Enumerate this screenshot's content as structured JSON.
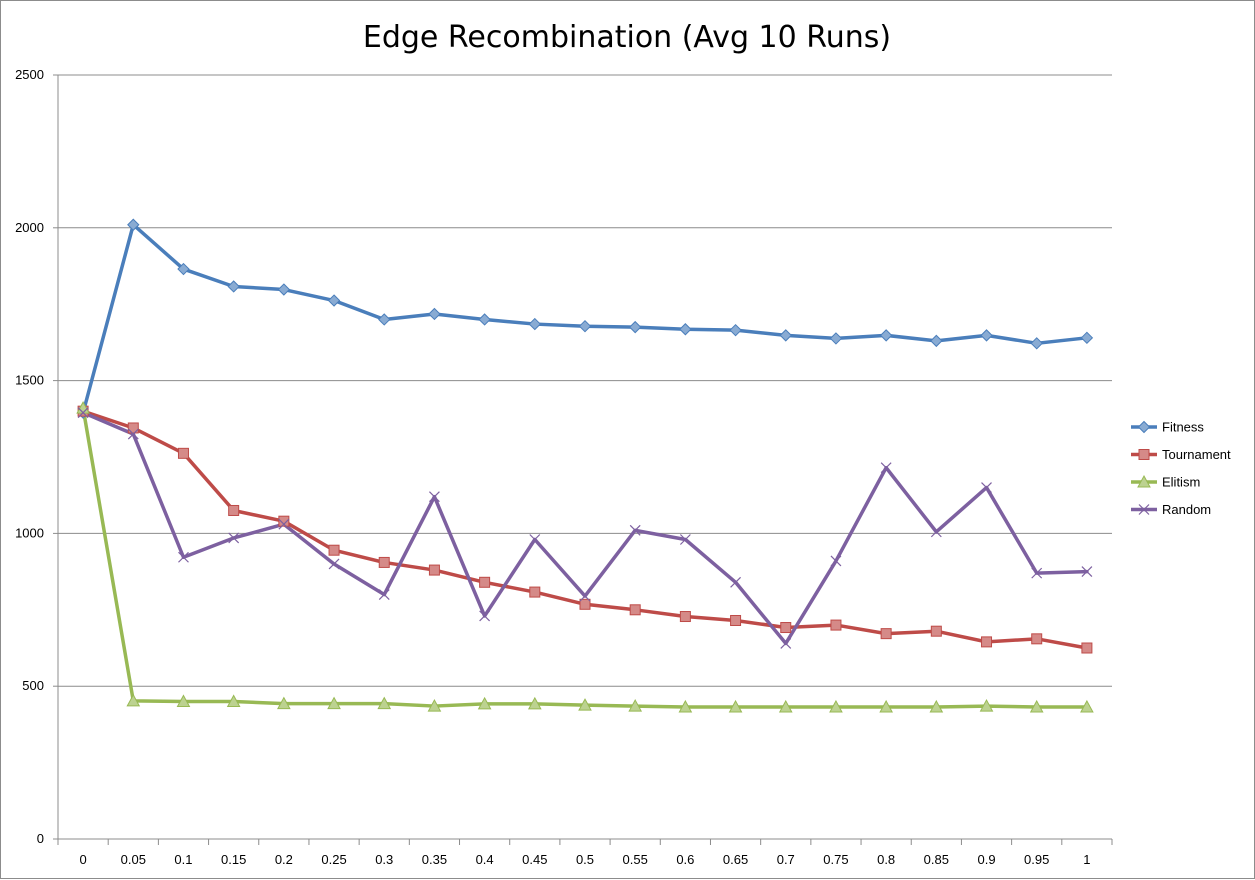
{
  "chart_data": {
    "type": "line",
    "title": "Edge Recombination (Avg 10 Runs)",
    "xlabel": "",
    "ylabel": "",
    "ylim": [
      0,
      2500
    ],
    "yticks": [
      "0",
      "500",
      "1000",
      "1500",
      "2000",
      "2500"
    ],
    "categories": [
      "0",
      "0.05",
      "0.1",
      "0.15",
      "0.2",
      "0.25",
      "0.3",
      "0.35",
      "0.4",
      "0.45",
      "0.5",
      "0.55",
      "0.6",
      "0.65",
      "0.7",
      "0.75",
      "0.8",
      "0.85",
      "0.9",
      "0.95",
      "1"
    ],
    "grid": "horizontal",
    "legend_position": "right",
    "series": [
      {
        "name": "Fitness",
        "color": "#4a7ebb",
        "marker": "diamond",
        "values": [
          1395,
          2010,
          1865,
          1808,
          1798,
          1762,
          1700,
          1718,
          1700,
          1685,
          1678,
          1675,
          1668,
          1665,
          1648,
          1638,
          1648,
          1630,
          1648,
          1622,
          1640
        ]
      },
      {
        "name": "Tournament",
        "color": "#be4b48",
        "marker": "square",
        "values": [
          1400,
          1345,
          1262,
          1075,
          1040,
          945,
          905,
          880,
          840,
          808,
          768,
          750,
          728,
          715,
          692,
          700,
          672,
          680,
          645,
          655,
          625
        ]
      },
      {
        "name": "Elitism",
        "color": "#98b954",
        "marker": "triangle",
        "values": [
          1410,
          452,
          450,
          450,
          443,
          443,
          443,
          435,
          442,
          442,
          438,
          435,
          432,
          432,
          432,
          432,
          432,
          432,
          435,
          432,
          432
        ]
      },
      {
        "name": "Random",
        "color": "#7d60a0",
        "marker": "x",
        "values": [
          1395,
          1325,
          922,
          985,
          1030,
          900,
          800,
          1120,
          730,
          980,
          795,
          1010,
          980,
          840,
          640,
          910,
          1215,
          1005,
          1150,
          870,
          875
        ]
      }
    ]
  }
}
